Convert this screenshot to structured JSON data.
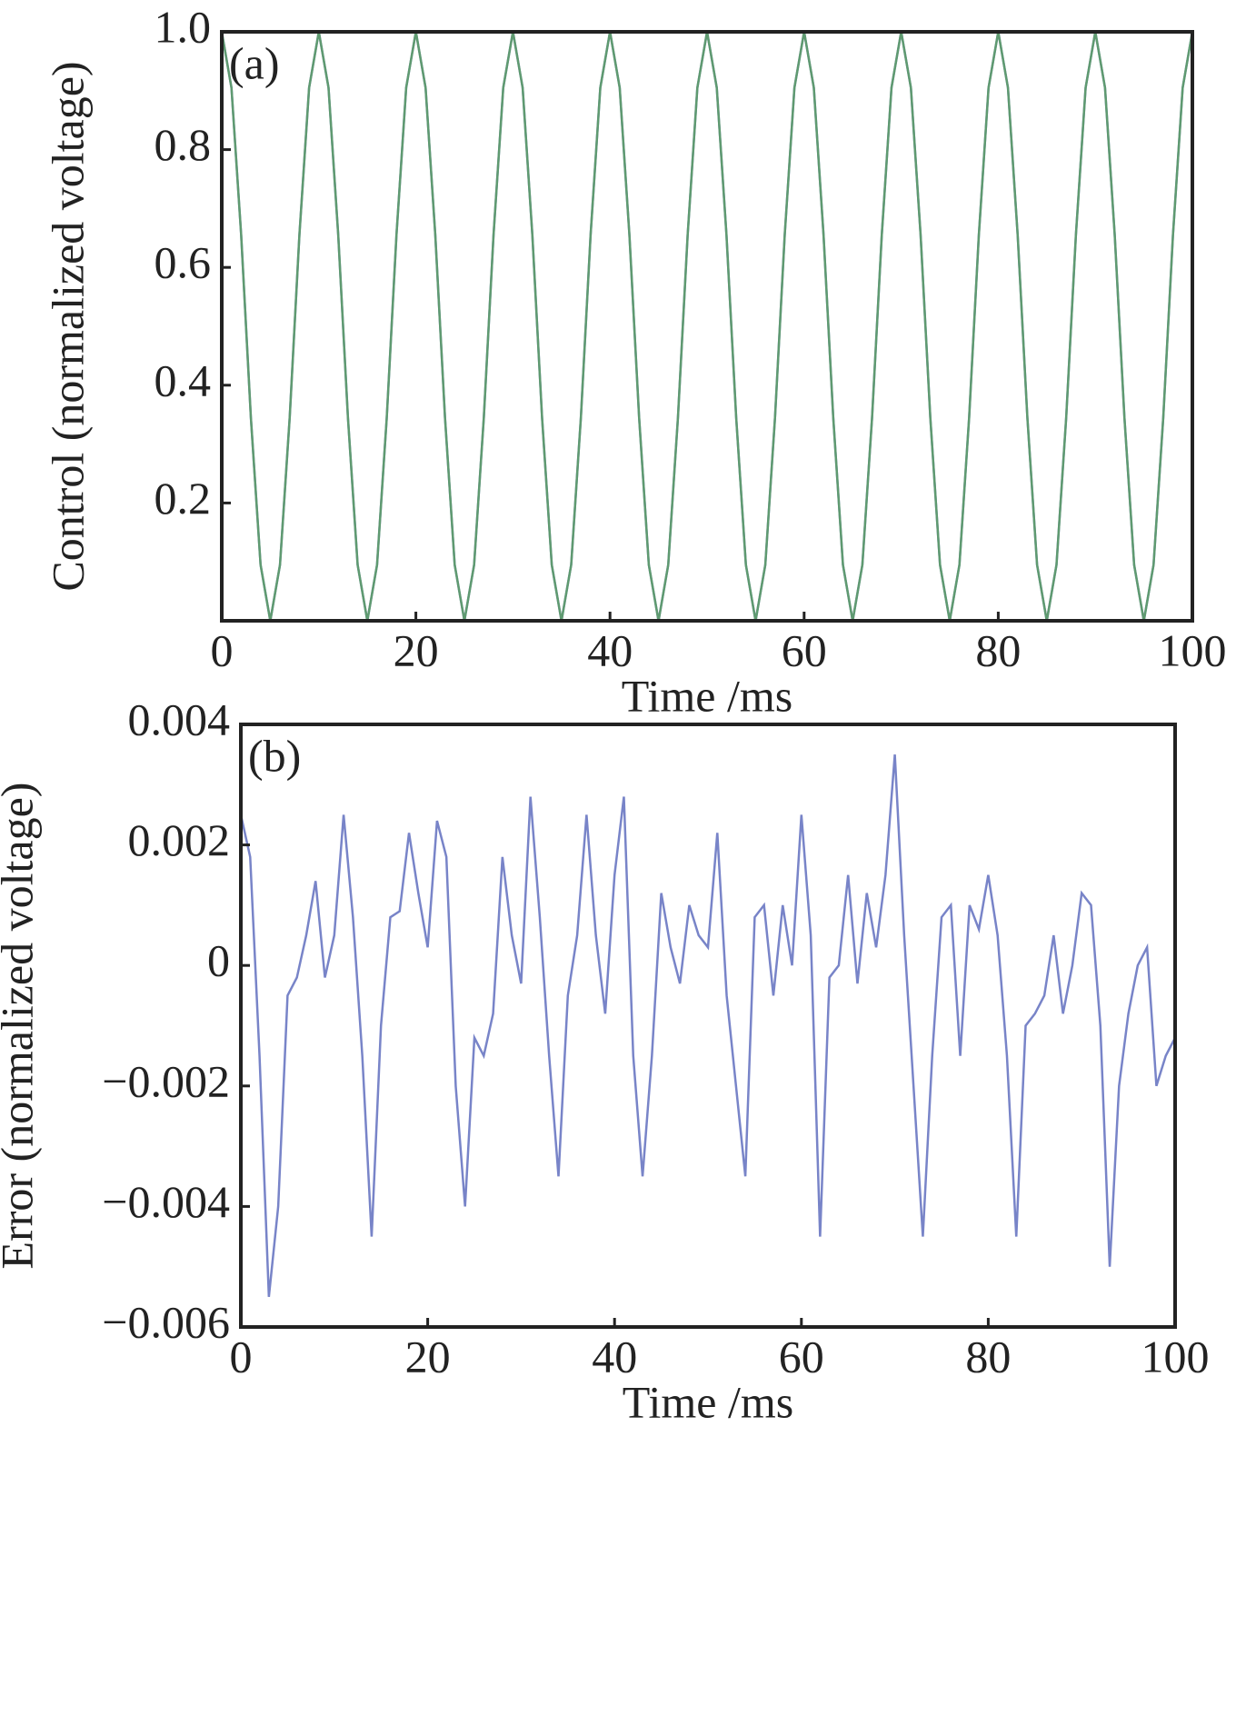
{
  "chart_data": [
    {
      "type": "line",
      "annotation": "(a)",
      "xlabel": "Time /ms",
      "ylabel": "Control (normalized voltage)",
      "xlim": [
        0,
        100
      ],
      "xticks": [
        0,
        20,
        40,
        60,
        80,
        100
      ],
      "ylim": [
        0,
        1
      ],
      "yticks": [
        0.2,
        0.4,
        0.6,
        0.8,
        {
          "value": 1,
          "label": "1.0"
        }
      ],
      "x": [
        0,
        1,
        2,
        3,
        4,
        5,
        6,
        7,
        8,
        9,
        10,
        11,
        12,
        13,
        14,
        15,
        16,
        17,
        18,
        19,
        20,
        21,
        22,
        23,
        24,
        25,
        26,
        27,
        28,
        29,
        30,
        31,
        32,
        33,
        34,
        35,
        36,
        37,
        38,
        39,
        40,
        41,
        42,
        43,
        44,
        45,
        46,
        47,
        48,
        49,
        50,
        51,
        52,
        53,
        54,
        55,
        56,
        57,
        58,
        59,
        60,
        61,
        62,
        63,
        64,
        65,
        66,
        67,
        68,
        69,
        70,
        71,
        72,
        73,
        74,
        75,
        76,
        77,
        78,
        79,
        80,
        81,
        82,
        83,
        84,
        85,
        86,
        87,
        88,
        89,
        90,
        91,
        92,
        93,
        94,
        95,
        96,
        97,
        98,
        99,
        100
      ],
      "series": [
        {
          "color": "#8090d0",
          "values": [
            1,
            0.905,
            0.655,
            0.345,
            0.095,
            0,
            0.095,
            0.345,
            0.655,
            0.905,
            1,
            0.905,
            0.655,
            0.345,
            0.095,
            0,
            0.095,
            0.345,
            0.655,
            0.905,
            1,
            0.905,
            0.655,
            0.345,
            0.095,
            0,
            0.095,
            0.345,
            0.655,
            0.905,
            1,
            0.905,
            0.655,
            0.345,
            0.095,
            0,
            0.095,
            0.345,
            0.655,
            0.905,
            1,
            0.905,
            0.655,
            0.345,
            0.095,
            0,
            0.095,
            0.345,
            0.655,
            0.905,
            1,
            0.905,
            0.655,
            0.345,
            0.095,
            0,
            0.095,
            0.345,
            0.655,
            0.905,
            1,
            0.905,
            0.655,
            0.345,
            0.095,
            0,
            0.095,
            0.345,
            0.655,
            0.905,
            1,
            0.905,
            0.655,
            0.345,
            0.095,
            0,
            0.095,
            0.345,
            0.655,
            0.905,
            1,
            0.905,
            0.655,
            0.345,
            0.095,
            0,
            0.095,
            0.345,
            0.655,
            0.905,
            1,
            0.905,
            0.655,
            0.345,
            0.095,
            0,
            0.095,
            0.345,
            0.655,
            0.905,
            1
          ]
        },
        {
          "color": "#5f9a70",
          "values": [
            1,
            0.905,
            0.655,
            0.345,
            0.095,
            0,
            0.095,
            0.345,
            0.655,
            0.905,
            1,
            0.905,
            0.655,
            0.345,
            0.095,
            0,
            0.095,
            0.345,
            0.655,
            0.905,
            1,
            0.905,
            0.655,
            0.345,
            0.095,
            0,
            0.095,
            0.345,
            0.655,
            0.905,
            1,
            0.905,
            0.655,
            0.345,
            0.095,
            0,
            0.095,
            0.345,
            0.655,
            0.905,
            1,
            0.905,
            0.655,
            0.345,
            0.095,
            0,
            0.095,
            0.345,
            0.655,
            0.905,
            1,
            0.905,
            0.655,
            0.345,
            0.095,
            0,
            0.095,
            0.345,
            0.655,
            0.905,
            1,
            0.905,
            0.655,
            0.345,
            0.095,
            0,
            0.095,
            0.345,
            0.655,
            0.905,
            1,
            0.905,
            0.655,
            0.345,
            0.095,
            0,
            0.095,
            0.345,
            0.655,
            0.905,
            1,
            0.905,
            0.655,
            0.345,
            0.095,
            0,
            0.095,
            0.345,
            0.655,
            0.905,
            1,
            0.905,
            0.655,
            0.345,
            0.095,
            0,
            0.095,
            0.345,
            0.655,
            0.905,
            1
          ]
        }
      ]
    },
    {
      "type": "line",
      "annotation": "(b)",
      "xlabel": "Time /ms",
      "ylabel": "Error (normalized voltage)",
      "xlim": [
        0,
        100
      ],
      "xticks": [
        0,
        20,
        40,
        60,
        80,
        100
      ],
      "ylim": [
        -0.006,
        0.004
      ],
      "yticks": [
        {
          "value": -0.006,
          "label": "−0.006"
        },
        {
          "value": -0.004,
          "label": "−0.004"
        },
        {
          "value": -0.002,
          "label": "−0.002"
        },
        0,
        0.002,
        0.004
      ],
      "x": [
        0,
        1,
        2,
        3,
        4,
        5,
        6,
        7,
        8,
        9,
        10,
        11,
        12,
        13,
        14,
        15,
        16,
        17,
        18,
        19,
        20,
        21,
        22,
        23,
        24,
        25,
        26,
        27,
        28,
        29,
        30,
        31,
        32,
        33,
        34,
        35,
        36,
        37,
        38,
        39,
        40,
        41,
        42,
        43,
        44,
        45,
        46,
        47,
        48,
        49,
        50,
        51,
        52,
        53,
        54,
        55,
        56,
        57,
        58,
        59,
        60,
        61,
        62,
        63,
        64,
        65,
        66,
        67,
        68,
        69,
        70,
        71,
        72,
        73,
        74,
        75,
        76,
        77,
        78,
        79,
        80,
        81,
        82,
        83,
        84,
        85,
        86,
        87,
        88,
        89,
        90,
        91,
        92,
        93,
        94,
        95,
        96,
        97,
        98,
        99,
        100
      ],
      "series": [
        {
          "color": "#7884c8",
          "values": [
            0.0025,
            0.0018,
            -0.0015,
            -0.0055,
            -0.004,
            -0.0005,
            -0.0002,
            0.0005,
            0.0014,
            -0.0002,
            0.0005,
            0.0025,
            0.0008,
            -0.0015,
            -0.0045,
            -0.001,
            0.0008,
            0.0009,
            0.0022,
            0.0012,
            0.0003,
            0.0024,
            0.0018,
            -0.002,
            -0.004,
            -0.0012,
            -0.0015,
            -0.0008,
            0.0018,
            0.0005,
            -0.0003,
            0.0028,
            0.0008,
            -0.0015,
            -0.0035,
            -0.0005,
            0.0005,
            0.0025,
            0.0005,
            -0.0008,
            0.0015,
            0.0028,
            -0.0015,
            -0.0035,
            -0.0015,
            0.0012,
            0.0003,
            -0.0003,
            0.001,
            0.0005,
            0.0003,
            0.0022,
            -0.0005,
            -0.002,
            -0.0035,
            0.0008,
            0.001,
            -0.0005,
            0.001,
            0,
            0.0025,
            0.0005,
            -0.0045,
            -0.0002,
            0,
            0.0015,
            -0.0003,
            0.0012,
            0.0003,
            0.0015,
            0.0035,
            0.0005,
            -0.002,
            -0.0045,
            -0.0015,
            0.0008,
            0.001,
            -0.0015,
            0.001,
            0.0006,
            0.0015,
            0.0005,
            -0.0015,
            -0.0045,
            -0.001,
            -0.0008,
            -0.0005,
            0.0005,
            -0.0008,
            0,
            0.0012,
            0.001,
            -0.001,
            -0.005,
            -0.002,
            -0.0008,
            0,
            0.0003,
            -0.002,
            -0.0015,
            -0.0012
          ]
        }
      ]
    }
  ]
}
